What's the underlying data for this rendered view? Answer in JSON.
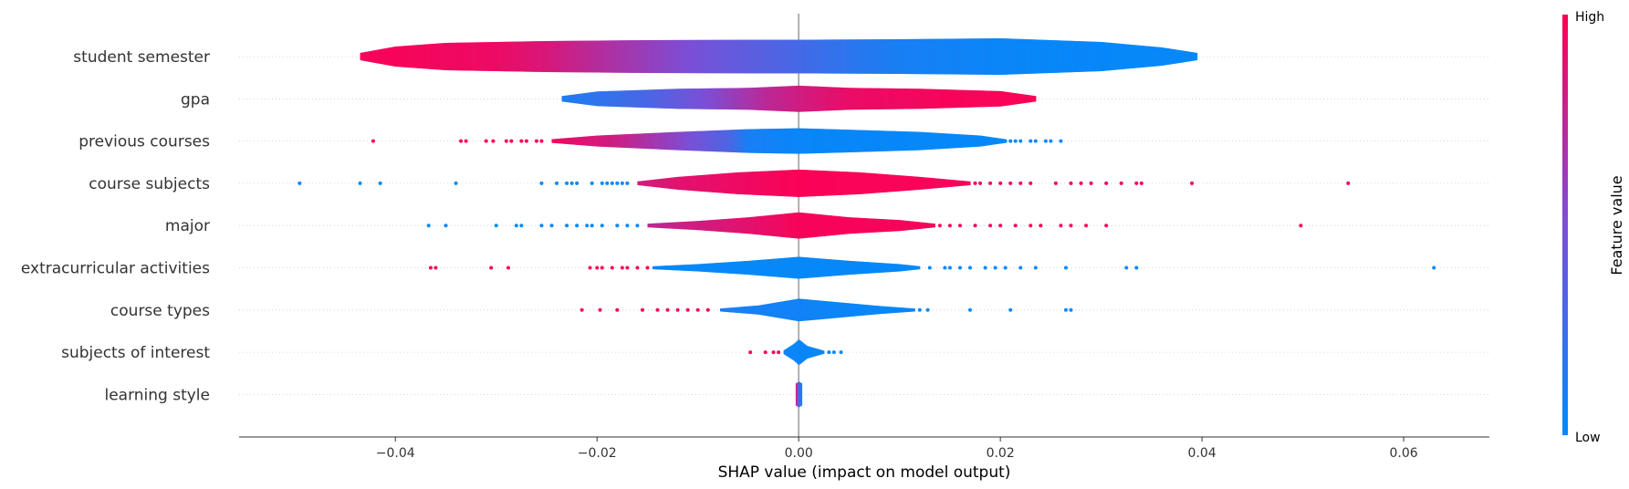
{
  "chart_data": {
    "type": "violin",
    "title": "",
    "xlabel": "SHAP value (impact on model output)",
    "xlim": [
      -0.0555,
      0.0685
    ],
    "xticks": [
      -0.04,
      -0.02,
      0.0,
      0.02,
      0.04,
      0.06
    ],
    "xtick_labels": [
      "−0.04",
      "−0.02",
      "0.00",
      "0.02",
      "0.04",
      "0.06"
    ],
    "zero_line": 0.0,
    "colorbar": {
      "title": "Feature value",
      "high_label": "High",
      "low_label": "Low",
      "high_color": "#ff0052",
      "low_color": "#008bfb",
      "mid_color": "#7b4fd6"
    },
    "features": [
      {
        "name": "student semester",
        "range": [
          -0.0435,
          0.0395
        ],
        "width": [
          [
            -0.0435,
            0.2
          ],
          [
            -0.04,
            0.55
          ],
          [
            -0.035,
            0.75
          ],
          [
            -0.025,
            0.85
          ],
          [
            -0.015,
            0.9
          ],
          [
            -0.005,
            0.92
          ],
          [
            0.0,
            0.92
          ],
          [
            0.01,
            0.95
          ],
          [
            0.02,
            1.0
          ],
          [
            0.03,
            0.8
          ],
          [
            0.036,
            0.5
          ],
          [
            0.0395,
            0.2
          ]
        ],
        "color": [
          [
            -0.04,
            0.97
          ],
          [
            -0.03,
            0.93
          ],
          [
            -0.025,
            0.85
          ],
          [
            -0.02,
            0.72
          ],
          [
            -0.015,
            0.6
          ],
          [
            -0.01,
            0.48
          ],
          [
            -0.005,
            0.38
          ],
          [
            0.0,
            0.28
          ],
          [
            0.005,
            0.18
          ],
          [
            0.01,
            0.1
          ],
          [
            0.02,
            0.04
          ],
          [
            0.04,
            0.02
          ]
        ],
        "dots": []
      },
      {
        "name": "gpa",
        "range": [
          -0.0235,
          0.0235
        ],
        "width": [
          [
            -0.0235,
            0.15
          ],
          [
            -0.02,
            0.4
          ],
          [
            -0.012,
            0.55
          ],
          [
            -0.005,
            0.6
          ],
          [
            0.0,
            0.72
          ],
          [
            0.005,
            0.6
          ],
          [
            0.012,
            0.55
          ],
          [
            0.02,
            0.42
          ],
          [
            0.0235,
            0.15
          ]
        ],
        "color": [
          [
            -0.0235,
            0.12
          ],
          [
            -0.015,
            0.3
          ],
          [
            -0.008,
            0.55
          ],
          [
            -0.003,
            0.75
          ],
          [
            0.0,
            0.82
          ],
          [
            0.005,
            0.92
          ],
          [
            0.015,
            0.97
          ],
          [
            0.0235,
            0.98
          ]
        ],
        "dots": []
      },
      {
        "name": "previous courses",
        "range": [
          -0.0245,
          0.0205
        ],
        "width": [
          [
            -0.0245,
            0.1
          ],
          [
            -0.02,
            0.3
          ],
          [
            -0.012,
            0.5
          ],
          [
            -0.005,
            0.65
          ],
          [
            0.0,
            0.7
          ],
          [
            0.005,
            0.62
          ],
          [
            0.012,
            0.5
          ],
          [
            0.018,
            0.3
          ],
          [
            0.0205,
            0.1
          ]
        ],
        "color": [
          [
            -0.0245,
            0.95
          ],
          [
            -0.018,
            0.8
          ],
          [
            -0.012,
            0.55
          ],
          [
            -0.007,
            0.32
          ],
          [
            -0.005,
            0.1
          ],
          [
            0.0,
            0.04
          ],
          [
            0.02,
            0.02
          ]
        ],
        "dots": [
          [
            -0.0422,
            0.98
          ],
          [
            -0.0335,
            0.98
          ],
          [
            -0.033,
            0.98
          ],
          [
            -0.031,
            0.98
          ],
          [
            -0.0303,
            0.98
          ],
          [
            -0.029,
            0.98
          ],
          [
            -0.0285,
            0.98
          ],
          [
            -0.0275,
            0.98
          ],
          [
            -0.027,
            0.98
          ],
          [
            -0.026,
            0.98
          ],
          [
            -0.0255,
            0.98
          ],
          [
            0.0205,
            0.02
          ],
          [
            0.021,
            0.02
          ],
          [
            0.0215,
            0.02
          ],
          [
            0.022,
            0.02
          ],
          [
            0.023,
            0.02
          ],
          [
            0.0235,
            0.02
          ],
          [
            0.0245,
            0.02
          ],
          [
            0.025,
            0.02
          ],
          [
            0.026,
            0.02
          ]
        ]
      },
      {
        "name": "course subjects",
        "range": [
          -0.016,
          0.017
        ],
        "width": [
          [
            -0.016,
            0.1
          ],
          [
            -0.012,
            0.35
          ],
          [
            -0.006,
            0.6
          ],
          [
            0.0,
            0.75
          ],
          [
            0.006,
            0.6
          ],
          [
            0.012,
            0.35
          ],
          [
            0.017,
            0.1
          ]
        ],
        "color": [
          [
            -0.016,
            0.85
          ],
          [
            -0.008,
            0.92
          ],
          [
            0.0,
            0.98
          ],
          [
            0.017,
            0.97
          ]
        ],
        "dots": [
          [
            -0.0495,
            0.02
          ],
          [
            -0.0435,
            0.02
          ],
          [
            -0.0415,
            0.02
          ],
          [
            -0.034,
            0.02
          ],
          [
            -0.0255,
            0.02
          ],
          [
            -0.024,
            0.02
          ],
          [
            -0.023,
            0.02
          ],
          [
            -0.0225,
            0.02
          ],
          [
            -0.022,
            0.02
          ],
          [
            -0.0205,
            0.02
          ],
          [
            -0.0195,
            0.02
          ],
          [
            -0.019,
            0.02
          ],
          [
            -0.0185,
            0.02
          ],
          [
            -0.018,
            0.02
          ],
          [
            -0.0175,
            0.02
          ],
          [
            -0.017,
            0.02
          ],
          [
            0.0175,
            0.98
          ],
          [
            0.018,
            0.98
          ],
          [
            0.019,
            0.98
          ],
          [
            0.02,
            0.98
          ],
          [
            0.021,
            0.98
          ],
          [
            0.022,
            0.98
          ],
          [
            0.023,
            0.98
          ],
          [
            0.0255,
            0.98
          ],
          [
            0.027,
            0.98
          ],
          [
            0.028,
            0.98
          ],
          [
            0.029,
            0.98
          ],
          [
            0.0305,
            0.98
          ],
          [
            0.032,
            0.98
          ],
          [
            0.0335,
            0.98
          ],
          [
            0.034,
            0.98
          ],
          [
            0.039,
            0.98
          ],
          [
            0.0545,
            0.98
          ]
        ]
      },
      {
        "name": "major",
        "range": [
          -0.015,
          0.0135
        ],
        "width": [
          [
            -0.015,
            0.1
          ],
          [
            -0.01,
            0.25
          ],
          [
            -0.005,
            0.45
          ],
          [
            0.0,
            0.72
          ],
          [
            0.005,
            0.45
          ],
          [
            0.01,
            0.3
          ],
          [
            0.0135,
            0.1
          ]
        ],
        "color": [
          [
            -0.015,
            0.75
          ],
          [
            -0.008,
            0.85
          ],
          [
            0.0,
            0.97
          ],
          [
            0.0135,
            0.97
          ]
        ],
        "dots": [
          [
            -0.0367,
            0.02
          ],
          [
            -0.035,
            0.02
          ],
          [
            -0.03,
            0.02
          ],
          [
            -0.028,
            0.02
          ],
          [
            -0.0275,
            0.02
          ],
          [
            -0.0255,
            0.02
          ],
          [
            -0.0245,
            0.02
          ],
          [
            -0.023,
            0.02
          ],
          [
            -0.022,
            0.02
          ],
          [
            -0.021,
            0.02
          ],
          [
            -0.0205,
            0.02
          ],
          [
            -0.0195,
            0.02
          ],
          [
            -0.018,
            0.02
          ],
          [
            -0.017,
            0.02
          ],
          [
            -0.016,
            0.02
          ],
          [
            0.014,
            0.98
          ],
          [
            0.015,
            0.98
          ],
          [
            0.016,
            0.98
          ],
          [
            0.0175,
            0.98
          ],
          [
            0.019,
            0.98
          ],
          [
            0.02,
            0.98
          ],
          [
            0.0215,
            0.98
          ],
          [
            0.023,
            0.98
          ],
          [
            0.024,
            0.98
          ],
          [
            0.026,
            0.98
          ],
          [
            0.027,
            0.98
          ],
          [
            0.0285,
            0.98
          ],
          [
            0.0305,
            0.98
          ],
          [
            0.0498,
            0.98
          ]
        ]
      },
      {
        "name": "extracurricular activities",
        "range": [
          -0.0145,
          0.012
        ],
        "width": [
          [
            -0.0145,
            0.08
          ],
          [
            -0.01,
            0.2
          ],
          [
            -0.005,
            0.38
          ],
          [
            0.0,
            0.6
          ],
          [
            0.005,
            0.38
          ],
          [
            0.01,
            0.2
          ],
          [
            0.012,
            0.08
          ]
        ],
        "color": [
          [
            -0.0145,
            0.03
          ],
          [
            0.012,
            0.02
          ]
        ],
        "dots": [
          [
            -0.0365,
            0.98
          ],
          [
            -0.036,
            0.98
          ],
          [
            -0.0305,
            0.98
          ],
          [
            -0.0288,
            0.98
          ],
          [
            -0.0207,
            0.98
          ],
          [
            -0.02,
            0.98
          ],
          [
            -0.0195,
            0.98
          ],
          [
            -0.0185,
            0.98
          ],
          [
            -0.0175,
            0.98
          ],
          [
            -0.017,
            0.98
          ],
          [
            -0.016,
            0.98
          ],
          [
            -0.015,
            0.98
          ],
          [
            0.013,
            0.02
          ],
          [
            0.0145,
            0.02
          ],
          [
            0.015,
            0.02
          ],
          [
            0.016,
            0.02
          ],
          [
            0.017,
            0.02
          ],
          [
            0.0185,
            0.02
          ],
          [
            0.0195,
            0.02
          ],
          [
            0.0205,
            0.02
          ],
          [
            0.022,
            0.02
          ],
          [
            0.0235,
            0.02
          ],
          [
            0.0265,
            0.02
          ],
          [
            0.0325,
            0.02
          ],
          [
            0.0335,
            0.02
          ],
          [
            0.063,
            0.02
          ]
        ]
      },
      {
        "name": "course types",
        "range": [
          -0.0078,
          0.0115
        ],
        "width": [
          [
            -0.0078,
            0.08
          ],
          [
            -0.004,
            0.25
          ],
          [
            0.0,
            0.62
          ],
          [
            0.004,
            0.42
          ],
          [
            0.008,
            0.22
          ],
          [
            0.0115,
            0.08
          ]
        ],
        "color": [
          [
            -0.0078,
            0.1
          ],
          [
            0.0115,
            0.02
          ]
        ],
        "dots": [
          [
            -0.0215,
            0.98
          ],
          [
            -0.0197,
            0.98
          ],
          [
            -0.018,
            0.98
          ],
          [
            -0.0155,
            0.98
          ],
          [
            -0.014,
            0.98
          ],
          [
            -0.013,
            0.98
          ],
          [
            -0.012,
            0.98
          ],
          [
            -0.011,
            0.98
          ],
          [
            -0.01,
            0.98
          ],
          [
            -0.009,
            0.98
          ],
          [
            0.012,
            0.02
          ],
          [
            0.0128,
            0.02
          ],
          [
            0.017,
            0.02
          ],
          [
            0.021,
            0.02
          ],
          [
            0.0265,
            0.02
          ],
          [
            0.027,
            0.02
          ]
        ]
      },
      {
        "name": "subjects of interest",
        "range": [
          -0.0015,
          0.0025
        ],
        "width": [
          [
            -0.0015,
            0.1
          ],
          [
            -0.0005,
            0.45
          ],
          [
            0.0,
            0.7
          ],
          [
            0.0008,
            0.35
          ],
          [
            0.0025,
            0.08
          ]
        ],
        "color": [
          [
            -0.0015,
            0.05
          ],
          [
            0.0025,
            0.02
          ]
        ],
        "dots": [
          [
            -0.0048,
            0.98
          ],
          [
            -0.0033,
            0.98
          ],
          [
            -0.0025,
            0.98
          ],
          [
            -0.002,
            0.98
          ],
          [
            0.003,
            0.02
          ],
          [
            0.0035,
            0.02
          ],
          [
            0.0042,
            0.02
          ]
        ]
      },
      {
        "name": "learning style",
        "range": [
          -0.0003,
          0.0003
        ],
        "width": [
          [
            -0.0003,
            0.6
          ],
          [
            0.0,
            0.7
          ],
          [
            0.0003,
            0.6
          ]
        ],
        "color": [
          [
            -0.0003,
            0.9
          ],
          [
            0.0,
            0.3
          ],
          [
            0.0003,
            0.05
          ]
        ],
        "dots": []
      }
    ]
  }
}
